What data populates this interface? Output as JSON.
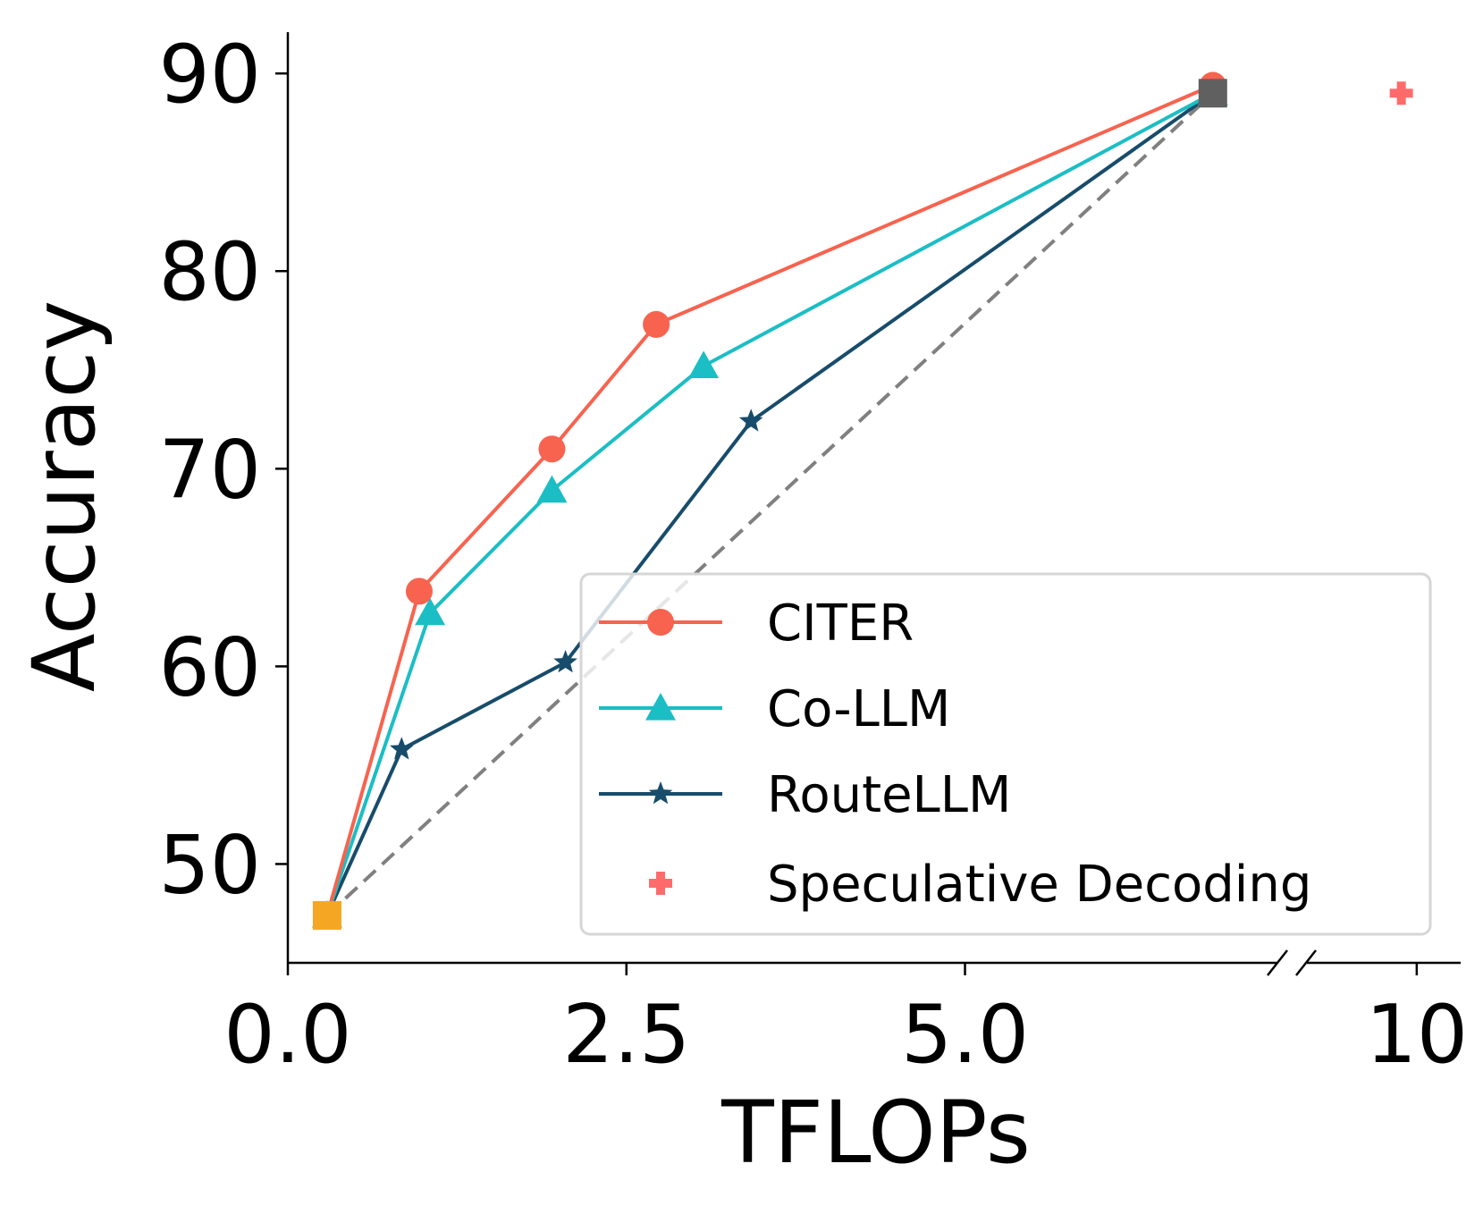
{
  "chart_data": {
    "type": "line",
    "xlabel": "TFLOPs",
    "ylabel": "Accuracy",
    "x_break": true,
    "x_segments": [
      {
        "range": [
          0,
          7.3
        ],
        "ticks": [
          0.0,
          2.5,
          5.0
        ],
        "tick_labels": [
          "0.0",
          "2.5",
          "5.0"
        ]
      },
      {
        "range": [
          9.0,
          10.4
        ],
        "ticks": [
          10
        ],
        "tick_labels": [
          "10"
        ]
      }
    ],
    "ylim": [
      45,
      91.5
    ],
    "yticks": [
      50,
      60,
      70,
      80,
      90
    ],
    "ytick_labels": [
      "50",
      "60",
      "70",
      "80",
      "90"
    ],
    "series": [
      {
        "name": "CITER",
        "color": "#f7634f",
        "marker": "circle",
        "x": [
          0.29,
          0.97,
          1.95,
          2.72,
          6.83
        ],
        "y": [
          47.4,
          63.8,
          71.0,
          77.3,
          89.4
        ]
      },
      {
        "name": "Co-LLM",
        "color": "#1bbec4",
        "marker": "triangle",
        "x": [
          0.29,
          1.05,
          1.95,
          3.07,
          6.83
        ],
        "y": [
          47.4,
          62.7,
          68.9,
          75.2,
          89.0
        ]
      },
      {
        "name": "RouteLLM",
        "color": "#174c6b",
        "marker": "star",
        "x": [
          0.29,
          0.84,
          2.05,
          3.42,
          6.83
        ],
        "y": [
          47.4,
          55.8,
          60.2,
          72.4,
          89.0
        ]
      },
      {
        "name": "Speculative Decoding",
        "color": "#ff6b6b",
        "marker": "plus",
        "x": [
          9.86
        ],
        "y": [
          89.0
        ]
      }
    ],
    "reference_line": {
      "x": [
        0.29,
        6.83
      ],
      "y": [
        47.4,
        89.0
      ],
      "style": "dashed",
      "color": "#808080"
    },
    "endpoints": [
      {
        "x": 0.29,
        "y": 47.4,
        "color": "#f5a623",
        "marker": "square"
      },
      {
        "x": 6.83,
        "y": 89.0,
        "color": "#606060",
        "marker": "square"
      }
    ],
    "legend": {
      "position": "lower-right",
      "entries": [
        "CITER",
        "Co-LLM",
        "RouteLLM",
        "Speculative Decoding"
      ]
    }
  }
}
